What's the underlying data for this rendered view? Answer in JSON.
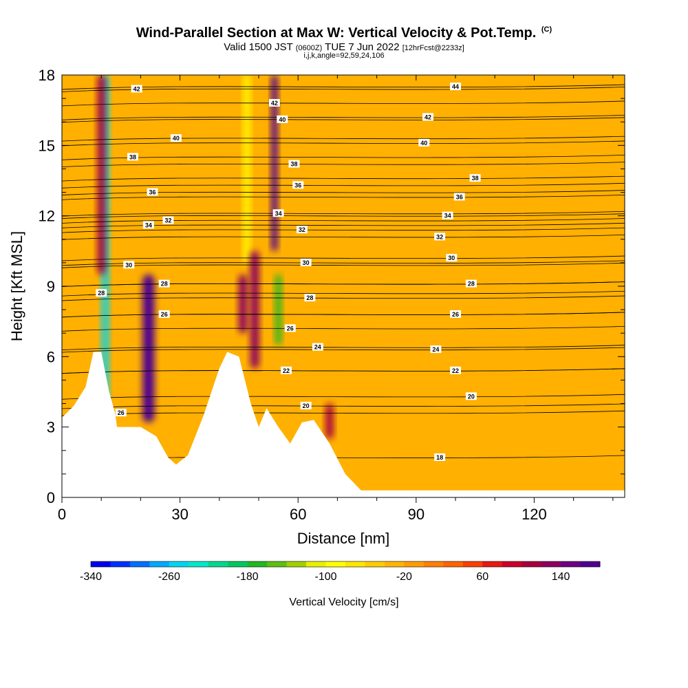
{
  "header": {
    "title": "Wind-Parallel Section at Max W: Vertical Velocity & Pot.Temp.",
    "copyright": "(C)",
    "valid_prefix": "Valid 1500 JST",
    "valid_utc": "(0600Z)",
    "valid_date": "TUE 7 Jun 2022",
    "forecast": "[12hrFcst@2233z]",
    "indices": "i,j,k,angle=92,59,24,106"
  },
  "chart_data": {
    "type": "heatmap",
    "xlabel": "Distance [nm]",
    "ylabel": "Height [Kft MSL]",
    "xlim": [
      0,
      143
    ],
    "ylim": [
      0,
      18
    ],
    "x_ticks": [
      0,
      30,
      60,
      90,
      120
    ],
    "y_ticks": [
      0,
      3,
      6,
      9,
      12,
      15,
      18
    ],
    "colorbar": {
      "label": "Vertical Velocity [cm/s]",
      "range": [
        -340,
        180
      ],
      "tick_labels": [
        -340,
        -260,
        -180,
        -100,
        -20,
        60,
        140
      ],
      "colors": [
        "#0000ee",
        "#0030ff",
        "#0070ff",
        "#00a8ff",
        "#00d4f0",
        "#00e8c8",
        "#00d890",
        "#00c860",
        "#20b820",
        "#5cc010",
        "#a0d000",
        "#e8f000",
        "#ffff00",
        "#ffe600",
        "#ffcc00",
        "#ffb400",
        "#ff9c00",
        "#ff8000",
        "#ff6400",
        "#f84000",
        "#e81810",
        "#cc0028",
        "#a8003c",
        "#8c0060",
        "#6c0080",
        "#500090"
      ]
    },
    "terrain": [
      {
        "x": 0,
        "h": 3.4
      },
      {
        "x": 3,
        "h": 3.9
      },
      {
        "x": 6,
        "h": 4.7
      },
      {
        "x": 8,
        "h": 6.2
      },
      {
        "x": 10,
        "h": 6.2
      },
      {
        "x": 12,
        "h": 4.5
      },
      {
        "x": 13.5,
        "h": 3.6
      },
      {
        "x": 14,
        "h": 3.0
      },
      {
        "x": 20,
        "h": 3.0
      },
      {
        "x": 24,
        "h": 2.6
      },
      {
        "x": 27,
        "h": 1.7
      },
      {
        "x": 29,
        "h": 1.4
      },
      {
        "x": 32,
        "h": 1.8
      },
      {
        "x": 36,
        "h": 3.5
      },
      {
        "x": 40,
        "h": 5.5
      },
      {
        "x": 42,
        "h": 6.2
      },
      {
        "x": 45,
        "h": 6.0
      },
      {
        "x": 48,
        "h": 4.0
      },
      {
        "x": 50,
        "h": 3.0
      },
      {
        "x": 52,
        "h": 3.8
      },
      {
        "x": 55,
        "h": 3.0
      },
      {
        "x": 58,
        "h": 2.3
      },
      {
        "x": 61,
        "h": 3.2
      },
      {
        "x": 64,
        "h": 3.3
      },
      {
        "x": 68,
        "h": 2.3
      },
      {
        "x": 72,
        "h": 1.0
      },
      {
        "x": 76,
        "h": 0.3
      },
      {
        "x": 143,
        "h": 0.3
      }
    ],
    "features": [
      {
        "x": 11,
        "h0": 4.0,
        "h1": 18,
        "w": 1.8,
        "value": -260
      },
      {
        "x": 10,
        "h0": 9.5,
        "h1": 18,
        "w": 2.0,
        "value": 100
      },
      {
        "x": 22,
        "h0": 3.2,
        "h1": 9.5,
        "w": 3.0,
        "value": 180
      },
      {
        "x": 46,
        "h0": 7.0,
        "h1": 9.5,
        "w": 2.2,
        "value": 120
      },
      {
        "x": 47,
        "h0": 10,
        "h1": 18,
        "w": 1.6,
        "value": -100
      },
      {
        "x": 49,
        "h0": 5.5,
        "h1": 10.5,
        "w": 2.2,
        "value": 120
      },
      {
        "x": 54,
        "h0": 10.5,
        "h1": 18,
        "w": 1.6,
        "value": 180
      },
      {
        "x": 55,
        "h0": 6.5,
        "h1": 9.5,
        "w": 1.6,
        "value": -180
      },
      {
        "x": 68,
        "h0": 2.5,
        "h1": 4.0,
        "w": 2.0,
        "value": 100
      }
    ],
    "contours": [
      {
        "x": 15,
        "h": 3.6,
        "label": "26"
      },
      {
        "x": 10,
        "h": 8.7,
        "label": "28"
      },
      {
        "x": 26,
        "h": 7.8,
        "label": "26"
      },
      {
        "x": 26,
        "h": 9.1,
        "label": "28"
      },
      {
        "x": 17,
        "h": 9.9,
        "label": "30"
      },
      {
        "x": 22,
        "h": 11.6,
        "label": "34"
      },
      {
        "x": 27,
        "h": 11.8,
        "label": "32"
      },
      {
        "x": 23,
        "h": 13.0,
        "label": "36"
      },
      {
        "x": 18,
        "h": 14.5,
        "label": "38"
      },
      {
        "x": 29,
        "h": 15.3,
        "label": "40"
      },
      {
        "x": 19,
        "h": 17.4,
        "label": "42"
      },
      {
        "x": 62,
        "h": 3.9,
        "label": "20"
      },
      {
        "x": 57,
        "h": 5.4,
        "label": "22"
      },
      {
        "x": 65,
        "h": 6.4,
        "label": "24"
      },
      {
        "x": 58,
        "h": 7.2,
        "label": "26"
      },
      {
        "x": 63,
        "h": 8.5,
        "label": "28"
      },
      {
        "x": 62,
        "h": 10.0,
        "label": "30"
      },
      {
        "x": 61,
        "h": 11.4,
        "label": "32"
      },
      {
        "x": 55,
        "h": 12.1,
        "label": "34"
      },
      {
        "x": 60,
        "h": 13.3,
        "label": "36"
      },
      {
        "x": 59,
        "h": 14.2,
        "label": "38"
      },
      {
        "x": 56,
        "h": 16.1,
        "label": "40"
      },
      {
        "x": 54,
        "h": 16.8,
        "label": "42"
      },
      {
        "x": 96,
        "h": 1.7,
        "label": "18"
      },
      {
        "x": 104,
        "h": 4.3,
        "label": "20"
      },
      {
        "x": 100,
        "h": 5.4,
        "label": "22"
      },
      {
        "x": 95,
        "h": 6.3,
        "label": "24"
      },
      {
        "x": 100,
        "h": 7.8,
        "label": "26"
      },
      {
        "x": 104,
        "h": 9.1,
        "label": "28"
      },
      {
        "x": 99,
        "h": 10.2,
        "label": "30"
      },
      {
        "x": 96,
        "h": 11.1,
        "label": "32"
      },
      {
        "x": 98,
        "h": 12.0,
        "label": "34"
      },
      {
        "x": 101,
        "h": 12.8,
        "label": "36"
      },
      {
        "x": 105,
        "h": 13.6,
        "label": "38"
      },
      {
        "x": 92,
        "h": 15.1,
        "label": "40"
      },
      {
        "x": 93,
        "h": 16.2,
        "label": "42"
      },
      {
        "x": 100,
        "h": 17.5,
        "label": "44"
      }
    ]
  }
}
